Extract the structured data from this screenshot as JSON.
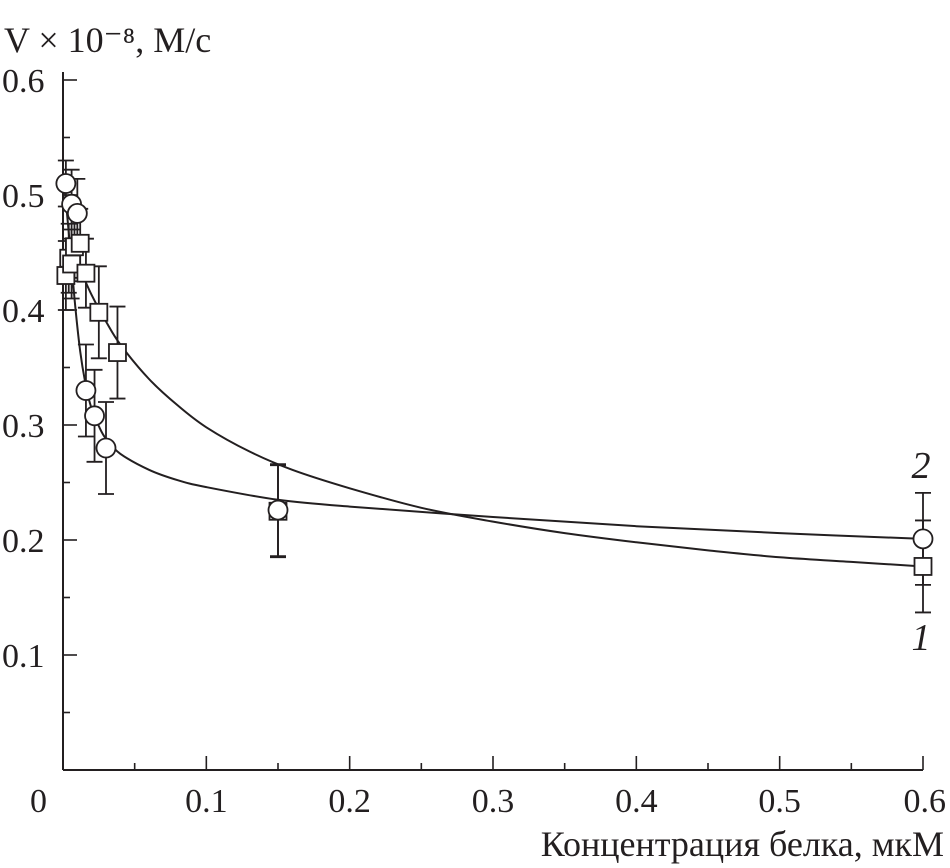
{
  "chart_data": {
    "type": "scatter",
    "ylabel": "V × 10⁻⁸, М/с",
    "xlabel": "Концентрация белка, мкМ",
    "xlim": [
      0,
      0.6
    ],
    "ylim": [
      0,
      0.6
    ],
    "x_ticks": [
      {
        "value": 0,
        "label": "0"
      },
      {
        "value": 0.1,
        "label": "0.1"
      },
      {
        "value": 0.2,
        "label": "0.2"
      },
      {
        "value": 0.3,
        "label": "0.3"
      },
      {
        "value": 0.4,
        "label": "0.4"
      },
      {
        "value": 0.5,
        "label": "0.5"
      },
      {
        "value": 0.6,
        "label": "0.6"
      }
    ],
    "y_ticks": [
      {
        "value": 0.1,
        "label": "0.1"
      },
      {
        "value": 0.2,
        "label": "0.2"
      },
      {
        "value": 0.3,
        "label": "0.3"
      },
      {
        "value": 0.4,
        "label": "0.4"
      },
      {
        "value": 0.5,
        "label": "0.5"
      },
      {
        "value": 0.6,
        "label": "0.6"
      }
    ],
    "grid": false,
    "series": [
      {
        "label": "1",
        "marker": "square",
        "x": [
          0.002,
          0.004,
          0.006,
          0.008,
          0.012,
          0.016,
          0.025,
          0.038,
          0.15,
          0.6
        ],
        "y": [
          0.43,
          0.445,
          0.44,
          0.455,
          0.458,
          0.432,
          0.398,
          0.363,
          0.225,
          0.177
        ],
        "error": [
          0.03,
          0.03,
          0.03,
          0.03,
          0.03,
          0.03,
          0.04,
          0.04,
          0.04,
          0.04
        ],
        "fit_x": [
          0.002,
          0.01,
          0.02,
          0.03,
          0.04,
          0.06,
          0.08,
          0.1,
          0.13,
          0.16,
          0.2,
          0.25,
          0.3,
          0.35,
          0.4,
          0.45,
          0.5,
          0.55,
          0.6
        ],
        "fit_y": [
          0.455,
          0.44,
          0.413,
          0.39,
          0.37,
          0.34,
          0.317,
          0.298,
          0.277,
          0.261,
          0.245,
          0.228,
          0.216,
          0.206,
          0.198,
          0.191,
          0.185,
          0.181,
          0.177
        ]
      },
      {
        "label": "2",
        "marker": "circle",
        "x": [
          0.002,
          0.006,
          0.01,
          0.016,
          0.022,
          0.03,
          0.15,
          0.6
        ],
        "y": [
          0.51,
          0.492,
          0.484,
          0.33,
          0.308,
          0.28,
          0.226,
          0.201
        ],
        "error": [
          0.02,
          0.03,
          0.03,
          0.04,
          0.04,
          0.04,
          0.04,
          0.04
        ],
        "fit_x": [
          0.0,
          0.004,
          0.008,
          0.012,
          0.016,
          0.02,
          0.025,
          0.03,
          0.04,
          0.06,
          0.08,
          0.1,
          0.15,
          0.2,
          0.3,
          0.4,
          0.5,
          0.6
        ],
        "fit_y": [
          0.52,
          0.468,
          0.41,
          0.364,
          0.334,
          0.314,
          0.299,
          0.288,
          0.275,
          0.261,
          0.252,
          0.246,
          0.235,
          0.229,
          0.22,
          0.212,
          0.206,
          0.201
        ]
      }
    ]
  }
}
